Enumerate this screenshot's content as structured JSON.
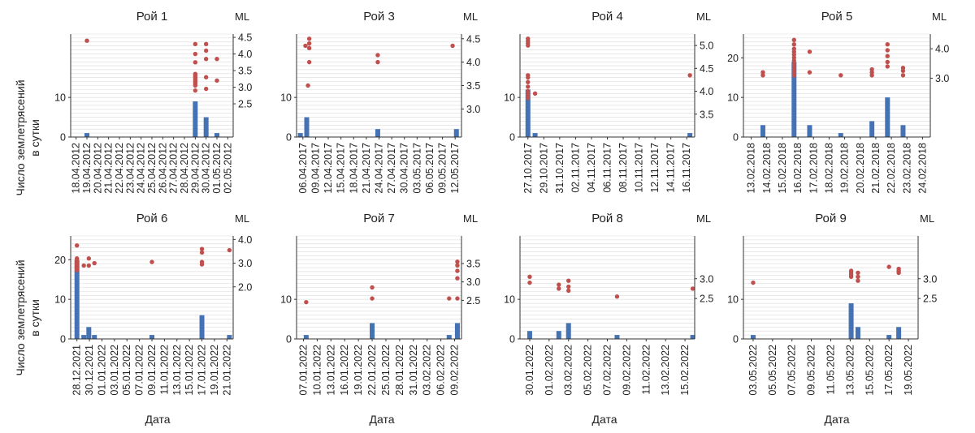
{
  "ylabel": [
    "Число землетрясений",
    "в сутки"
  ],
  "xlabel": "Дата",
  "ml_label": "ML",
  "colors": {
    "bar": "#4472b4",
    "point": "#c0504d",
    "grid": "#d9d9d9",
    "axis": "#333333"
  },
  "chart_data": [
    {
      "type": "bar",
      "title": "Рой 1",
      "x_ticks": [
        "18.04.2012",
        "19.04.2012",
        "20.04.2012",
        "21.04.2012",
        "22.04.2012",
        "23.04.2012",
        "24.04.2012",
        "25.04.2012",
        "26.04.2012",
        "27.04.2012",
        "28.04.2012",
        "29.04.2012",
        "30.04.2012",
        "01.05.2012",
        "02.05.2012"
      ],
      "y_left_ticks": [
        0,
        10
      ],
      "ylim": [
        0,
        26
      ],
      "y_right_ticks": [
        "2.5",
        "3.0",
        "3.5",
        "4.0",
        "4.5"
      ],
      "y_right_range": [
        1.5,
        4.6
      ],
      "bars": [
        {
          "x": 1,
          "value": 1
        },
        {
          "x": 11,
          "value": 9
        },
        {
          "x": 12,
          "value": 5
        },
        {
          "x": 13,
          "value": 1
        }
      ],
      "ml_points": [
        [
          1,
          4.4
        ],
        [
          11,
          4.3
        ],
        [
          11,
          4.0
        ],
        [
          11,
          3.75
        ],
        [
          11,
          3.4
        ],
        [
          11,
          3.35
        ],
        [
          11,
          3.3
        ],
        [
          11,
          3.25
        ],
        [
          11,
          3.2
        ],
        [
          11,
          3.15
        ],
        [
          11,
          3.1
        ],
        [
          11,
          3.05
        ],
        [
          11,
          2.9
        ],
        [
          12,
          4.3
        ],
        [
          12,
          4.1
        ],
        [
          12,
          3.85
        ],
        [
          12,
          3.3
        ],
        [
          12,
          2.95
        ],
        [
          13,
          3.85
        ],
        [
          13,
          3.2
        ]
      ]
    },
    {
      "type": "bar",
      "title": "Рой 3",
      "x_ticks": [
        "06.04.2017",
        "09.04.2017",
        "12.04.2017",
        "15.04.2017",
        "18.04.2017",
        "21.04.2017",
        "24.04.2017",
        "27.04.2017",
        "30.04.2017",
        "03.05.2017",
        "06.05.2017",
        "09.05.2017",
        "12.05.2017"
      ],
      "y_left_ticks": [
        0,
        10
      ],
      "ylim": [
        0,
        26
      ],
      "y_right_ticks": [
        "3.0",
        "3.5",
        "4.0",
        "4.5"
      ],
      "y_right_range": [
        2.4,
        4.6
      ],
      "bars": [
        {
          "x": -0.2,
          "value": 1
        },
        {
          "x": 0.3,
          "value": 5
        },
        {
          "x": 5.9,
          "value": 2
        },
        {
          "x": 12.1,
          "value": 2
        }
      ],
      "ml_points": [
        [
          0.2,
          4.35
        ],
        [
          0.5,
          4.5
        ],
        [
          0.5,
          4.4
        ],
        [
          0.5,
          4.3
        ],
        [
          0.5,
          4.0
        ],
        [
          0.4,
          3.5
        ],
        [
          5.9,
          4.15
        ],
        [
          5.9,
          4.0
        ],
        [
          11.8,
          4.35
        ]
      ]
    },
    {
      "type": "bar",
      "title": "Рой 4",
      "x_ticks": [
        "27.10.2017",
        "29.10.2017",
        "31.10.2017",
        "02.11.2017",
        "04.11.2017",
        "06.11.2017",
        "08.11.2017",
        "10.11.2017",
        "12.11.2017",
        "14.11.2017",
        "16.11.2017"
      ],
      "y_left_ticks": [
        0,
        10
      ],
      "ylim": [
        0,
        26
      ],
      "y_right_ticks": [
        "3.5",
        "4.0",
        "4.5",
        "5.0"
      ],
      "y_right_range": [
        3.0,
        5.25
      ],
      "bars": [
        {
          "x": 0,
          "value": 12
        },
        {
          "x": 0.45,
          "value": 1
        },
        {
          "x": 10.2,
          "value": 1
        }
      ],
      "ml_points": [
        [
          0,
          5.15
        ],
        [
          0,
          5.1
        ],
        [
          0,
          5.05
        ],
        [
          0,
          5.0
        ],
        [
          0,
          4.35
        ],
        [
          0,
          4.3
        ],
        [
          0,
          4.2
        ],
        [
          0,
          4.1
        ],
        [
          0,
          4.0
        ],
        [
          0,
          3.95
        ],
        [
          0,
          3.9
        ],
        [
          0,
          3.85
        ],
        [
          0.45,
          3.95
        ],
        [
          10.2,
          4.35
        ]
      ]
    },
    {
      "type": "bar",
      "title": "Рой 5",
      "x_ticks": [
        "13.02.2018",
        "14.02.2018",
        "15.02.2018",
        "16.02.2018",
        "17.02.2018",
        "18.02.2018",
        "19.02.2018",
        "20.02.2018",
        "21.02.2018",
        "22.02.2018",
        "23.02.2018",
        "24.02.2018"
      ],
      "y_left_ticks": [
        0,
        10,
        20
      ],
      "ylim": [
        0,
        26
      ],
      "y_right_ticks": [
        "3.0",
        "4.0"
      ],
      "y_right_range": [
        1.0,
        4.5
      ],
      "bars": [
        {
          "x": 0.75,
          "value": 3
        },
        {
          "x": 2.75,
          "value": 19
        },
        {
          "x": 3.75,
          "value": 3
        },
        {
          "x": 5.75,
          "value": 1
        },
        {
          "x": 7.75,
          "value": 4
        },
        {
          "x": 8.75,
          "value": 10
        },
        {
          "x": 9.75,
          "value": 3
        }
      ],
      "ml_points": [
        [
          0.75,
          3.2
        ],
        [
          0.75,
          3.1
        ],
        [
          2.75,
          4.3
        ],
        [
          2.75,
          4.15
        ],
        [
          2.75,
          4.0
        ],
        [
          2.75,
          3.9
        ],
        [
          2.75,
          3.8
        ],
        [
          2.75,
          3.7
        ],
        [
          2.75,
          3.6
        ],
        [
          2.75,
          3.5
        ],
        [
          2.75,
          3.4
        ],
        [
          2.75,
          3.3
        ],
        [
          2.75,
          3.2
        ],
        [
          2.75,
          3.1
        ],
        [
          3.75,
          3.9
        ],
        [
          3.75,
          3.2
        ],
        [
          5.75,
          3.1
        ],
        [
          7.75,
          3.3
        ],
        [
          7.75,
          3.2
        ],
        [
          7.75,
          3.1
        ],
        [
          8.75,
          4.15
        ],
        [
          8.75,
          3.95
        ],
        [
          8.75,
          3.75
        ],
        [
          8.75,
          3.55
        ],
        [
          8.75,
          3.4
        ],
        [
          9.75,
          3.35
        ],
        [
          9.75,
          3.25
        ],
        [
          9.75,
          3.1
        ]
      ]
    },
    {
      "type": "bar",
      "title": "Рой 6",
      "x_ticks": [
        "28.12.2021",
        "30.12.2021",
        "01.01.2022",
        "03.01.2022",
        "05.01.2022",
        "07.01.2022",
        "09.01.2022",
        "11.01.2022",
        "13.01.2022",
        "15.01.2022",
        "17.01.2022",
        "19.01.2022",
        "21.01.2022"
      ],
      "y_left_ticks": [
        0,
        10,
        20
      ],
      "ylim": [
        0,
        26
      ],
      "y_right_ticks": [
        "2.0",
        "3.0",
        "4.0"
      ],
      "y_right_range": [
        -0.2,
        4.15
      ],
      "bars": [
        {
          "x": 0,
          "value": 20
        },
        {
          "x": 0.55,
          "value": 1
        },
        {
          "x": 0.95,
          "value": 3
        },
        {
          "x": 1.4,
          "value": 1
        },
        {
          "x": 6,
          "value": 1
        },
        {
          "x": 10,
          "value": 6
        },
        {
          "x": 12.2,
          "value": 1
        }
      ],
      "ml_points": [
        [
          0,
          3.75
        ],
        [
          0,
          3.2
        ],
        [
          0,
          3.1
        ],
        [
          0,
          3.0
        ],
        [
          0,
          2.95
        ],
        [
          0,
          2.9
        ],
        [
          0,
          2.85
        ],
        [
          0,
          2.8
        ],
        [
          0,
          2.75
        ],
        [
          0,
          2.7
        ],
        [
          0.55,
          2.9
        ],
        [
          0.95,
          3.2
        ],
        [
          0.95,
          2.9
        ],
        [
          1.4,
          3.0
        ],
        [
          6,
          3.05
        ],
        [
          10,
          3.6
        ],
        [
          10,
          3.45
        ],
        [
          10,
          3.05
        ],
        [
          10,
          2.95
        ],
        [
          12.2,
          3.55
        ]
      ]
    },
    {
      "type": "bar",
      "title": "Рой 7",
      "x_ticks": [
        "07.01.2022",
        "10.01.2022",
        "13.01.2022",
        "16.01.2022",
        "19.01.2022",
        "22.01.2022",
        "25.01.2022",
        "28.01.2022",
        "31.01.2022",
        "03.02.2022",
        "06.02.2022",
        "09.02.2022"
      ],
      "y_left_ticks": [
        0,
        10
      ],
      "ylim": [
        0,
        26
      ],
      "y_right_ticks": [
        "2.5",
        "3.0",
        "3.5"
      ],
      "y_right_range": [
        1.45,
        4.25
      ],
      "bars": [
        {
          "x": 0.2,
          "value": 1
        },
        {
          "x": 5,
          "value": 4
        },
        {
          "x": 10.6,
          "value": 1
        },
        {
          "x": 11.2,
          "value": 4
        }
      ],
      "ml_points": [
        [
          0.2,
          2.45
        ],
        [
          5,
          2.85
        ],
        [
          5,
          2.55
        ],
        [
          10.6,
          2.55
        ],
        [
          11.2,
          3.55
        ],
        [
          11.2,
          3.45
        ],
        [
          11.2,
          3.3
        ],
        [
          11.2,
          3.1
        ],
        [
          11.2,
          2.55
        ]
      ]
    },
    {
      "type": "bar",
      "title": "Рой 8",
      "x_ticks": [
        "30.01.2022",
        "01.02.2022",
        "03.02.2022",
        "05.02.2022",
        "07.02.2022",
        "09.02.2022",
        "11.02.2022",
        "13.02.2022",
        "15.02.2022"
      ],
      "y_left_ticks": [
        0,
        10
      ],
      "ylim": [
        0,
        26
      ],
      "y_right_ticks": [
        "2.5",
        "3.0"
      ],
      "y_right_range": [
        1.48,
        4.08
      ],
      "bars": [
        {
          "x": 0,
          "value": 2
        },
        {
          "x": 1.5,
          "value": 2
        },
        {
          "x": 2.0,
          "value": 4
        },
        {
          "x": 4.5,
          "value": 1
        },
        {
          "x": 8.4,
          "value": 1
        }
      ],
      "ml_points": [
        [
          0,
          3.05
        ],
        [
          0,
          2.9
        ],
        [
          1.5,
          2.85
        ],
        [
          1.5,
          2.75
        ],
        [
          2.0,
          2.95
        ],
        [
          2.0,
          2.8
        ],
        [
          2.0,
          2.7
        ],
        [
          4.5,
          2.55
        ],
        [
          8.4,
          2.75
        ]
      ]
    },
    {
      "type": "bar",
      "title": "Рой 9",
      "x_ticks": [
        "03.05.2022",
        "05.05.2022",
        "07.05.2022",
        "09.05.2022",
        "11.05.2022",
        "13.05.2022",
        "15.05.2022",
        "17.05.2022",
        "19.05.2022"
      ],
      "y_left_ticks": [
        0,
        10
      ],
      "ylim": [
        0,
        26
      ],
      "y_right_ticks": [
        "2.5",
        "3.0"
      ],
      "y_right_range": [
        1.48,
        4.08
      ],
      "bars": [
        {
          "x": 0,
          "value": 1
        },
        {
          "x": 5.05,
          "value": 9
        },
        {
          "x": 5.4,
          "value": 3
        },
        {
          "x": 7.0,
          "value": 1
        },
        {
          "x": 7.5,
          "value": 3
        }
      ],
      "ml_points": [
        [
          0,
          2.9
        ],
        [
          5.05,
          3.2
        ],
        [
          5.05,
          3.15
        ],
        [
          5.05,
          3.1
        ],
        [
          5.05,
          3.05
        ],
        [
          5.4,
          3.15
        ],
        [
          5.4,
          3.05
        ],
        [
          5.4,
          2.95
        ],
        [
          7.0,
          3.3
        ],
        [
          7.5,
          3.25
        ],
        [
          7.5,
          3.2
        ],
        [
          7.5,
          3.15
        ]
      ]
    }
  ]
}
